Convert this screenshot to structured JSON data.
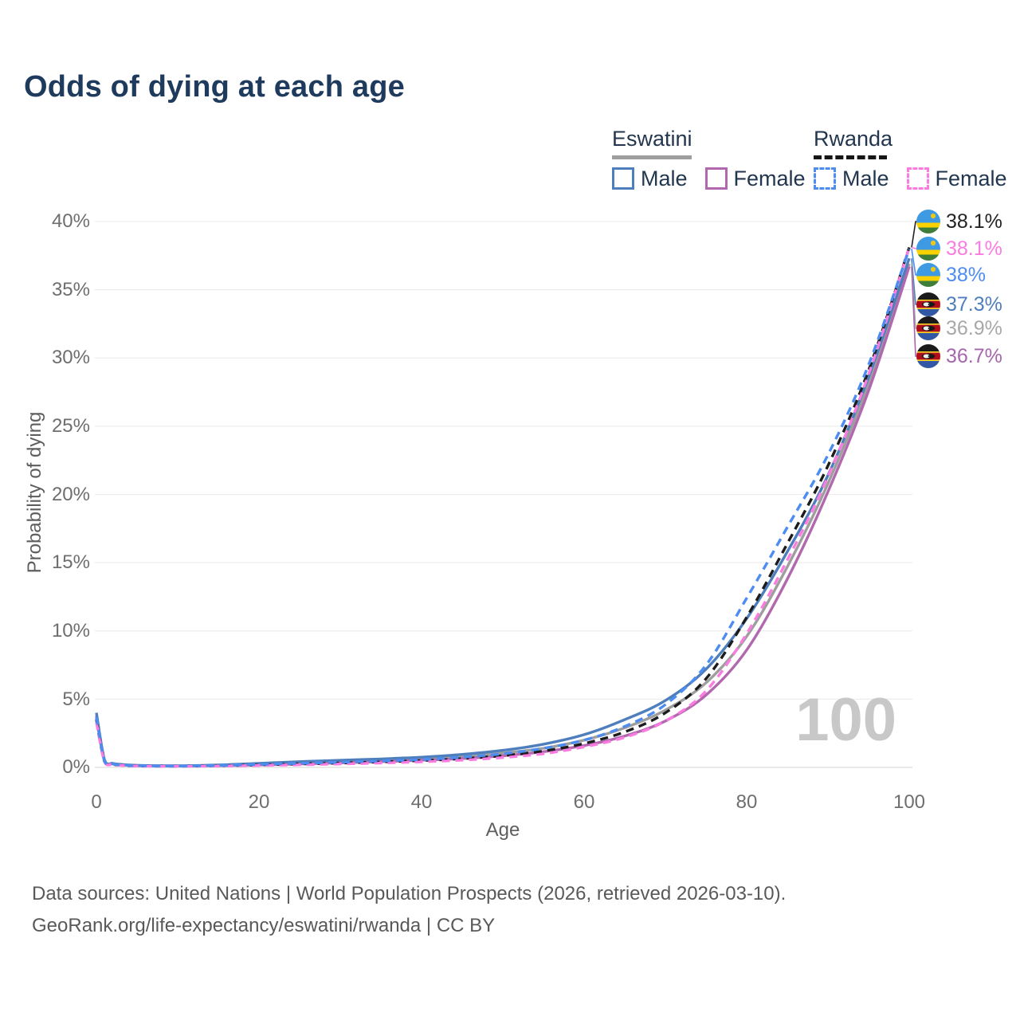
{
  "title": "Odds of dying at each age",
  "watermark": "100",
  "legend": {
    "eswatini": {
      "title": "Eswatini",
      "male_label": "Male",
      "female_label": "Female",
      "line_style": "solid"
    },
    "rwanda": {
      "title": "Rwanda",
      "male_label": "Male",
      "female_label": "Female",
      "line_style": "dashed"
    }
  },
  "colors": {
    "eswatini_male": "#4e7fbc",
    "eswatini_female": "#b168ae",
    "eswatini_both": "#9e9e9e",
    "rwanda_male": "#4d8df2",
    "rwanda_female": "#fb7ce1",
    "rwanda_both": "#1c1c1c",
    "title_text": "#1e3a5c",
    "tick_text": "#6e6e6e"
  },
  "axes": {
    "x": {
      "title": "Age",
      "tick_labels": [
        "0",
        "20",
        "40",
        "60",
        "80",
        "100"
      ]
    },
    "y": {
      "title": "Probability of dying",
      "tick_labels": [
        "40%",
        "35%",
        "30%",
        "25%",
        "20%",
        "15%",
        "10%",
        "5%",
        "0%"
      ]
    }
  },
  "end_labels": [
    {
      "flag": "rwanda",
      "value": "38.1%",
      "color": "#232323",
      "series_id": "rwanda_both"
    },
    {
      "flag": "rwanda",
      "value": "38.1%",
      "color": "#fb7ce1",
      "series_id": "rwanda_female"
    },
    {
      "flag": "rwanda",
      "value": "38%",
      "color": "#4d8df2",
      "series_id": "rwanda_male"
    },
    {
      "flag": "eswatini",
      "value": "37.3%",
      "color": "#4e7fbc",
      "series_id": "eswatini_male"
    },
    {
      "flag": "eswatini",
      "value": "36.9%",
      "color": "#a8a8a8",
      "series_id": "eswatini_both"
    },
    {
      "flag": "eswatini",
      "value": "36.7%",
      "color": "#a765ad",
      "series_id": "eswatini_female"
    }
  ],
  "footer": {
    "line1": "Data sources: United Nations | World Population Prospects (2026, retrieved 2026-03-10).",
    "line2": "GeoRank.org/life-expectancy/eswatini/rwanda | CC BY"
  },
  "chart_data": {
    "type": "line",
    "title": "Odds of dying at each age",
    "xlabel": "Age",
    "ylabel": "Probability of dying",
    "xlim": [
      0,
      100
    ],
    "ylim": [
      0,
      40
    ],
    "unit": "%",
    "grid": true,
    "legend_position": "top-right",
    "x_ticks": [
      0,
      20,
      40,
      60,
      80,
      100
    ],
    "y_ticks_percent": [
      0,
      5,
      10,
      15,
      20,
      25,
      30,
      35,
      40
    ],
    "ages": [
      0,
      1,
      2,
      3,
      5,
      10,
      15,
      20,
      25,
      30,
      35,
      40,
      45,
      50,
      55,
      60,
      65,
      70,
      75,
      80,
      85,
      90,
      95,
      100
    ],
    "series": [
      {
        "id": "eswatini_both",
        "name": "Eswatini (both sexes)",
        "color": "#9e9e9e",
        "dash": false,
        "end_value": 36.9,
        "values": [
          3.8,
          0.52,
          0.28,
          0.2,
          0.14,
          0.11,
          0.15,
          0.24,
          0.33,
          0.42,
          0.52,
          0.63,
          0.8,
          1.05,
          1.4,
          2.0,
          2.9,
          4.2,
          6.2,
          9.6,
          14.7,
          20.8,
          28.1,
          36.9
        ]
      },
      {
        "id": "eswatini_female",
        "name": "Eswatini Female",
        "color": "#b168ae",
        "dash": false,
        "end_value": 36.7,
        "values": [
          3.6,
          0.5,
          0.27,
          0.19,
          0.13,
          0.1,
          0.13,
          0.18,
          0.25,
          0.33,
          0.42,
          0.52,
          0.65,
          0.85,
          1.15,
          1.6,
          2.3,
          3.4,
          5.3,
          8.6,
          13.8,
          20.2,
          27.6,
          36.7
        ]
      },
      {
        "id": "eswatini_male",
        "name": "Eswatini Male",
        "color": "#4e7fbc",
        "dash": false,
        "end_value": 37.3,
        "values": [
          4.0,
          0.55,
          0.3,
          0.22,
          0.15,
          0.12,
          0.18,
          0.3,
          0.42,
          0.52,
          0.62,
          0.75,
          0.95,
          1.25,
          1.7,
          2.4,
          3.5,
          4.9,
          7.2,
          10.9,
          15.8,
          21.4,
          28.6,
          37.3
        ]
      },
      {
        "id": "rwanda_both",
        "name": "Rwanda (both sexes)",
        "color": "#1c1c1c",
        "dash": true,
        "end_value": 38.1,
        "values": [
          3.5,
          0.43,
          0.23,
          0.16,
          0.11,
          0.09,
          0.12,
          0.18,
          0.25,
          0.32,
          0.4,
          0.5,
          0.64,
          0.86,
          1.2,
          1.75,
          2.6,
          4.0,
          6.5,
          11.0,
          16.4,
          22.1,
          29.1,
          38.1
        ]
      },
      {
        "id": "rwanda_female",
        "name": "Rwanda Female",
        "color": "#fb7ce1",
        "dash": true,
        "end_value": 38.1,
        "values": [
          3.3,
          0.4,
          0.22,
          0.15,
          0.1,
          0.08,
          0.1,
          0.14,
          0.19,
          0.25,
          0.32,
          0.41,
          0.53,
          0.72,
          1.0,
          1.5,
          2.2,
          3.4,
          5.6,
          9.8,
          15.2,
          21.3,
          28.8,
          38.1
        ]
      },
      {
        "id": "rwanda_male",
        "name": "Rwanda Male",
        "color": "#4d8df2",
        "dash": true,
        "end_value": 38.0,
        "values": [
          3.7,
          0.45,
          0.25,
          0.18,
          0.12,
          0.1,
          0.14,
          0.22,
          0.3,
          0.38,
          0.47,
          0.58,
          0.75,
          1.0,
          1.4,
          2.0,
          3.0,
          4.6,
          7.5,
          12.4,
          17.6,
          22.9,
          29.5,
          38.0
        ]
      }
    ]
  }
}
